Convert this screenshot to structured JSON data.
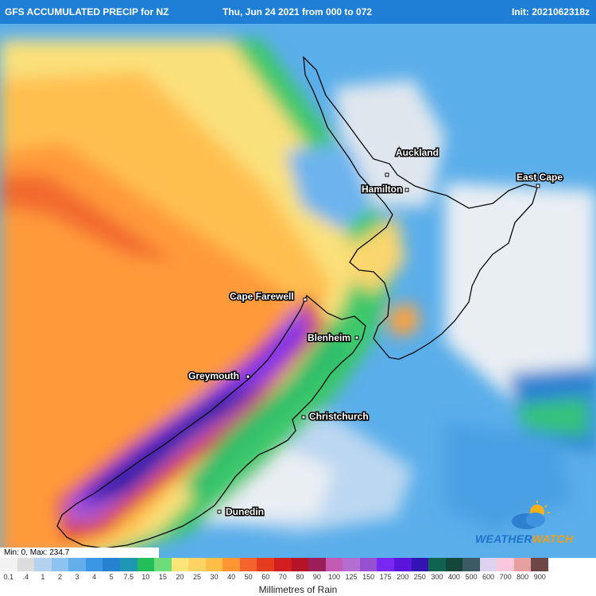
{
  "header": {
    "left": "GFS ACCUMULATED PRECIP for NZ",
    "center": "Thu, Jun 24 2021 from 000 to 072",
    "right": "Init: 2021062318z"
  },
  "places": [
    {
      "key": "auckland",
      "name": "Auckland"
    },
    {
      "key": "hamilton",
      "name": "Hamilton"
    },
    {
      "key": "east_cape",
      "name": "East Cape"
    },
    {
      "key": "cape_farewell",
      "name": "Cape Farewell"
    },
    {
      "key": "blenheim",
      "name": "Blenheim"
    },
    {
      "key": "greymouth",
      "name": "Greymouth"
    },
    {
      "key": "christchurch",
      "name": "Christchurch"
    },
    {
      "key": "dunedin",
      "name": "Dunedin"
    }
  ],
  "minmax": "Min: 0, Max: 234.7",
  "legend": {
    "title": "Millimetres of Rain",
    "ticks": [
      "0.1",
      ".4",
      "1",
      "2",
      "3",
      "4",
      "5",
      "7.5",
      "10",
      "15",
      "20",
      "25",
      "30",
      "40",
      "50",
      "60",
      "70",
      "80",
      "90",
      "100",
      "125",
      "150",
      "175",
      "200",
      "250",
      "300",
      "400",
      "500",
      "600",
      "700",
      "800",
      "900"
    ],
    "colors": [
      "#f2f2f2",
      "#dcdcdc",
      "#b4d2f0",
      "#8cc3f0",
      "#64afeb",
      "#3c96e6",
      "#2882d2",
      "#1e96b4",
      "#23be5a",
      "#6edc78",
      "#fae678",
      "#ffd264",
      "#ffbe46",
      "#ff9632",
      "#f5642d",
      "#e63c1e",
      "#d21e1e",
      "#b41428",
      "#9b1e5a",
      "#c35ab4",
      "#b46ed2",
      "#9650d2",
      "#7828f0",
      "#5a14dc",
      "#3214b4",
      "#0f6450",
      "#14463c",
      "#3c5a64",
      "#dcd2f0",
      "#fac8dc",
      "#e6a0a0",
      "#6e4646"
    ]
  },
  "brand": {
    "part1": "WEATHER",
    "part2": "WATCH"
  }
}
